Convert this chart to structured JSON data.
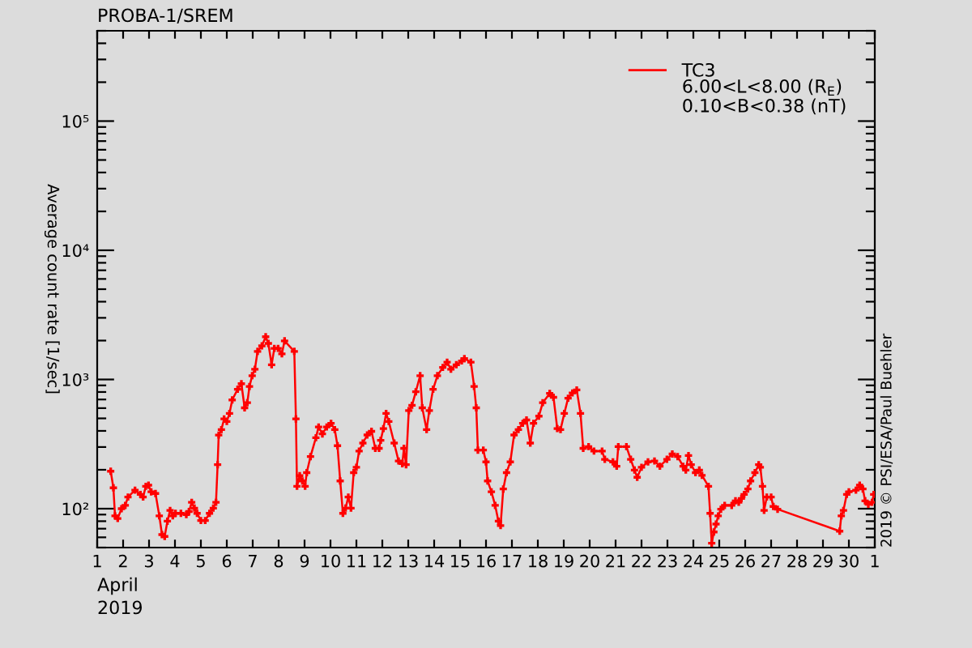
{
  "chart_data": {
    "type": "line",
    "title": "PROBA-1/SREM",
    "xlabel": "April\n2019",
    "ylabel": "Average count rate [1/sec]",
    "x": [
      "2019-04-01T12:30",
      "2019-04-01T15:00",
      "2019-04-01T16:30",
      "2019-04-01T19:00",
      "2019-04-01T22:30",
      "2019-04-02T02:00",
      "2019-04-02T04:30",
      "2019-04-02T11:00",
      "2019-04-02T16:00",
      "2019-04-02T18:30",
      "2019-04-02T21:00",
      "2019-04-02T23:30",
      "2019-04-03T02:00",
      "2019-04-03T06:00",
      "2019-04-03T09:30",
      "2019-04-03T12:00",
      "2019-04-03T14:30",
      "2019-04-03T17:00",
      "2019-04-03T19:30",
      "2019-04-03T22:00",
      "2019-04-04T00:30",
      "2019-04-04T05:30",
      "2019-04-04T10:30",
      "2019-04-04T13:00",
      "2019-04-04T15:30",
      "2019-04-04T18:00",
      "2019-04-04T20:30",
      "2019-04-05T00:00",
      "2019-04-05T04:00",
      "2019-04-05T08:00",
      "2019-04-05T11:30",
      "2019-04-05T14:00",
      "2019-04-05T15:30",
      "2019-04-05T16:30",
      "2019-04-05T19:00",
      "2019-04-05T21:30",
      "2019-04-06T00:00",
      "2019-04-06T02:30",
      "2019-04-06T05:00",
      "2019-04-06T10:00",
      "2019-04-06T13:30",
      "2019-04-06T16:30",
      "2019-04-06T19:00",
      "2019-04-06T21:00",
      "2019-04-06T23:30",
      "2019-04-07T02:00",
      "2019-04-07T04:30",
      "2019-04-07T08:30",
      "2019-04-07T12:00",
      "2019-04-07T14:30",
      "2019-04-07T17:30",
      "2019-04-07T20:00",
      "2019-04-07T23:30",
      "2019-04-08T03:00",
      "2019-04-08T05:30",
      "2019-04-08T14:30",
      "2019-04-08T16:00",
      "2019-04-08T17:00",
      "2019-04-08T19:30",
      "2019-04-08T22:00",
      "2019-04-09T00:30",
      "2019-04-09T02:00",
      "2019-04-09T05:30",
      "2019-04-09T10:30",
      "2019-04-09T13:00",
      "2019-04-09T16:30",
      "2019-04-09T20:30",
      "2019-04-10T00:30",
      "2019-04-10T04:00",
      "2019-04-10T06:30",
      "2019-04-10T09:00",
      "2019-04-10T11:30",
      "2019-04-10T14:00",
      "2019-04-10T16:30",
      "2019-04-10T19:00",
      "2019-04-10T21:30",
      "2019-04-11T00:00",
      "2019-04-11T02:30",
      "2019-04-11T06:00",
      "2019-04-11T10:00",
      "2019-04-11T14:00",
      "2019-04-11T17:30",
      "2019-04-11T21:00",
      "2019-04-11T22:30",
      "2019-04-12T01:00",
      "2019-04-12T03:30",
      "2019-04-12T06:00",
      "2019-04-12T11:00",
      "2019-04-12T15:00",
      "2019-04-12T18:30",
      "2019-04-12T20:00",
      "2019-04-12T22:00",
      "2019-04-13T00:30",
      "2019-04-13T03:30",
      "2019-04-13T07:00",
      "2019-04-13T11:00",
      "2019-04-13T13:00",
      "2019-04-13T17:00",
      "2019-04-13T19:30",
      "2019-04-13T23:00",
      "2019-04-14T03:00",
      "2019-04-14T08:00",
      "2019-04-14T12:00",
      "2019-04-14T15:30",
      "2019-04-14T20:30",
      "2019-04-15T01:30",
      "2019-04-15T04:00",
      "2019-04-15T10:00",
      "2019-04-15T13:00",
      "2019-04-15T15:00",
      "2019-04-15T16:30",
      "2019-04-15T21:30",
      "2019-04-16T00:00",
      "2019-04-16T01:30",
      "2019-04-16T05:00",
      "2019-04-16T08:30",
      "2019-04-16T11:30",
      "2019-04-16T13:30",
      "2019-04-16T16:00",
      "2019-04-16T19:00",
      "2019-04-16T22:30",
      "2019-04-17T02:00",
      "2019-04-17T06:00",
      "2019-04-17T10:00",
      "2019-04-17T13:30",
      "2019-04-17T17:00",
      "2019-04-17T20:00",
      "2019-04-18T01:00",
      "2019-04-18T04:30",
      "2019-04-18T11:00",
      "2019-04-18T14:30",
      "2019-04-18T18:00",
      "2019-04-18T21:00",
      "2019-04-19T00:30",
      "2019-04-19T04:00",
      "2019-04-19T08:00",
      "2019-04-19T12:00",
      "2019-04-19T15:30",
      "2019-04-19T18:00",
      "2019-04-19T23:00",
      "2019-04-20T04:00",
      "2019-04-20T11:30",
      "2019-04-20T14:00",
      "2019-04-20T21:30",
      "2019-04-21T01:00",
      "2019-04-21T02:30",
      "2019-04-21T10:00",
      "2019-04-21T14:00",
      "2019-04-21T17:30",
      "2019-04-21T20:00",
      "2019-04-22T00:00",
      "2019-04-22T06:00",
      "2019-04-22T12:00",
      "2019-04-22T17:00",
      "2019-04-22T23:30",
      "2019-04-23T04:30",
      "2019-04-23T09:30",
      "2019-04-23T14:30",
      "2019-04-23T17:00",
      "2019-04-23T19:30",
      "2019-04-23T22:00",
      "2019-04-24T02:00",
      "2019-04-24T05:30",
      "2019-04-24T08:00",
      "2019-04-24T14:00",
      "2019-04-24T15:30",
      "2019-04-24T17:00",
      "2019-04-24T19:00",
      "2019-04-24T21:00",
      "2019-04-24T23:00",
      "2019-04-25T01:30",
      "2019-04-25T05:00",
      "2019-04-25T11:30",
      "2019-04-25T15:00",
      "2019-04-25T18:00",
      "2019-04-25T20:30",
      "2019-04-25T23:00",
      "2019-04-26T02:30",
      "2019-04-26T05:00",
      "2019-04-26T09:00",
      "2019-04-26T12:30",
      "2019-04-26T14:00",
      "2019-04-26T16:00",
      "2019-04-26T17:30",
      "2019-04-26T20:00",
      "2019-04-27T00:00",
      "2019-04-27T02:00",
      "2019-04-27T06:00",
      "2019-04-29T15:30",
      "2019-04-29T17:00",
      "2019-04-29T19:00",
      "2019-04-29T22:00",
      "2019-04-30T00:00",
      "2019-04-30T06:30",
      "2019-04-30T10:00",
      "2019-04-30T13:00",
      "2019-04-30T15:00",
      "2019-04-30T18:00",
      "2019-04-30T21:30",
      "2019-04-30T23:00"
    ],
    "series": [
      {
        "name": "TC3",
        "color": "#ff0000",
        "values": [
          195,
          145,
          88,
          84,
          100,
          106,
          123,
          139,
          129,
          123,
          149,
          152,
          135,
          131,
          88,
          63,
          61,
          80,
          97,
          88,
          92,
          92,
          90,
          95,
          112,
          101,
          92,
          81,
          81,
          92,
          101,
          112,
          219,
          371,
          409,
          495,
          473,
          546,
          694,
          840,
          927,
          603,
          661,
          883,
          1070,
          1200,
          1650,
          1820,
          2140,
          1900,
          1300,
          1740,
          1740,
          1580,
          1990,
          1650,
          495,
          149,
          180,
          164,
          149,
          190,
          253,
          354,
          429,
          379,
          429,
          458,
          409,
          307,
          164,
          92,
          101,
          123,
          101,
          190,
          209,
          279,
          322,
          372,
          397,
          293,
          293,
          338,
          417,
          546,
          473,
          322,
          234,
          223,
          293,
          219,
          574,
          631,
          803,
          1070,
          603,
          409,
          574,
          840,
          1070,
          1240,
          1360,
          1200,
          1300,
          1390,
          1450,
          1360,
          883,
          603,
          284,
          284,
          230,
          164,
          135,
          106,
          80,
          74,
          142,
          190,
          230,
          372,
          409,
          458,
          486,
          322,
          458,
          520,
          661,
          780,
          728,
          417,
          409,
          546,
          716,
          787,
          830,
          546,
          293,
          302,
          279,
          279,
          241,
          230,
          213,
          302,
          302,
          241,
          199,
          175,
          209,
          230,
          234,
          213,
          241,
          265,
          253,
          213,
          199,
          258,
          219,
          190,
          199,
          181,
          149,
          92,
          54,
          66,
          76,
          88,
          99,
          106,
          106,
          115,
          112,
          120,
          129,
          142,
          164,
          190,
          219,
          209,
          149,
          97,
          123,
          123,
          104,
          99,
          67,
          88,
          97,
          129,
          135,
          139,
          152,
          142,
          115,
          108,
          112,
          129
        ]
      }
    ],
    "xlim": [
      "2019-04-01",
      "2019-05-01"
    ],
    "xticks": [
      {
        "value": "2019-04-01",
        "label": "1"
      },
      {
        "value": "2019-04-02",
        "label": "2"
      },
      {
        "value": "2019-04-03",
        "label": "3"
      },
      {
        "value": "2019-04-04",
        "label": "4"
      },
      {
        "value": "2019-04-05",
        "label": "5"
      },
      {
        "value": "2019-04-06",
        "label": "6"
      },
      {
        "value": "2019-04-07",
        "label": "7"
      },
      {
        "value": "2019-04-08",
        "label": "8"
      },
      {
        "value": "2019-04-09",
        "label": "9"
      },
      {
        "value": "2019-04-10",
        "label": "10"
      },
      {
        "value": "2019-04-11",
        "label": "11"
      },
      {
        "value": "2019-04-12",
        "label": "12"
      },
      {
        "value": "2019-04-13",
        "label": "13"
      },
      {
        "value": "2019-04-14",
        "label": "14"
      },
      {
        "value": "2019-04-15",
        "label": "15"
      },
      {
        "value": "2019-04-16",
        "label": "16"
      },
      {
        "value": "2019-04-17",
        "label": "17"
      },
      {
        "value": "2019-04-18",
        "label": "18"
      },
      {
        "value": "2019-04-19",
        "label": "19"
      },
      {
        "value": "2019-04-20",
        "label": "20"
      },
      {
        "value": "2019-04-21",
        "label": "21"
      },
      {
        "value": "2019-04-22",
        "label": "22"
      },
      {
        "value": "2019-04-23",
        "label": "23"
      },
      {
        "value": "2019-04-24",
        "label": "24"
      },
      {
        "value": "2019-04-25",
        "label": "25"
      },
      {
        "value": "2019-04-26",
        "label": "26"
      },
      {
        "value": "2019-04-27",
        "label": "27"
      },
      {
        "value": "2019-04-28",
        "label": "28"
      },
      {
        "value": "2019-04-29",
        "label": "29"
      },
      {
        "value": "2019-04-30",
        "label": "30"
      },
      {
        "value": "2019-05-01",
        "label": "1"
      }
    ],
    "ylim": [
      50,
      500000
    ],
    "yticks": [
      {
        "value": 100,
        "label": "10²"
      },
      {
        "value": 1000,
        "label": "10³"
      },
      {
        "value": 10000,
        "label": "10⁴"
      },
      {
        "value": 100000,
        "label": "10⁵"
      }
    ],
    "log": true,
    "grid": false,
    "legend": "top right",
    "marker": "cross",
    "line_style": "solid",
    "annotations": [
      "6.00<L<8.00 (R$_{E}$)",
      "0.10<B<0.38 (nT)",
      "2019 © PSI/ESA/Paul Buehler"
    ]
  }
}
